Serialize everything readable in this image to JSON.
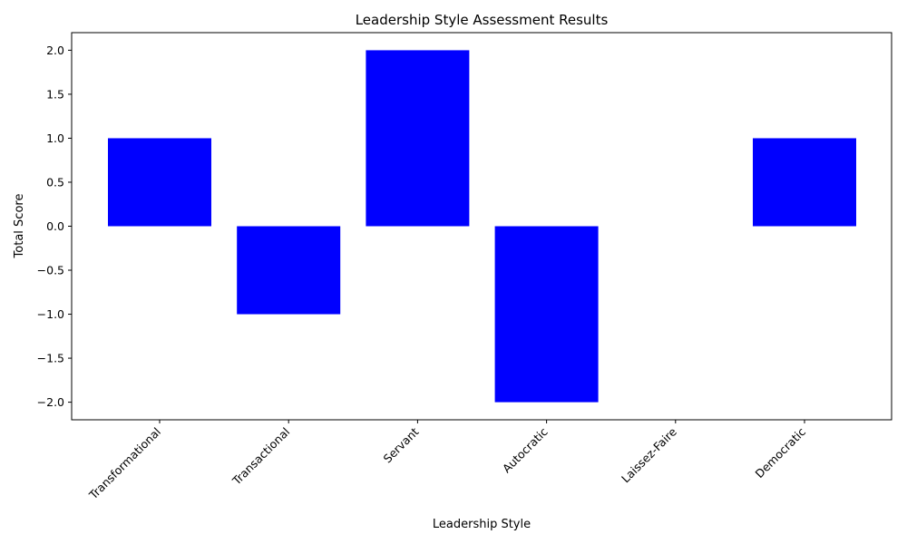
{
  "chart_data": {
    "type": "bar",
    "title": "Leadership Style Assessment Results",
    "xlabel": "Leadership Style",
    "ylabel": "Total Score",
    "categories": [
      "Transformational",
      "Transactional",
      "Servant",
      "Autocratic",
      "Laissez-Faire",
      "Democratic"
    ],
    "values": [
      1,
      -1,
      2,
      -2,
      0,
      1
    ],
    "ylim": [
      -2.2,
      2.2
    ],
    "yticks": [
      2.0,
      1.5,
      1.0,
      0.5,
      0.0,
      -0.5,
      -1.0,
      -1.5,
      -2.0
    ],
    "ytick_labels": [
      "2.0",
      "1.5",
      "1.0",
      "0.5",
      "0.0",
      "−0.5",
      "−1.0",
      "−1.5",
      "−2.0"
    ],
    "bar_color": "#0000ff",
    "grid": false,
    "legend": "none"
  }
}
